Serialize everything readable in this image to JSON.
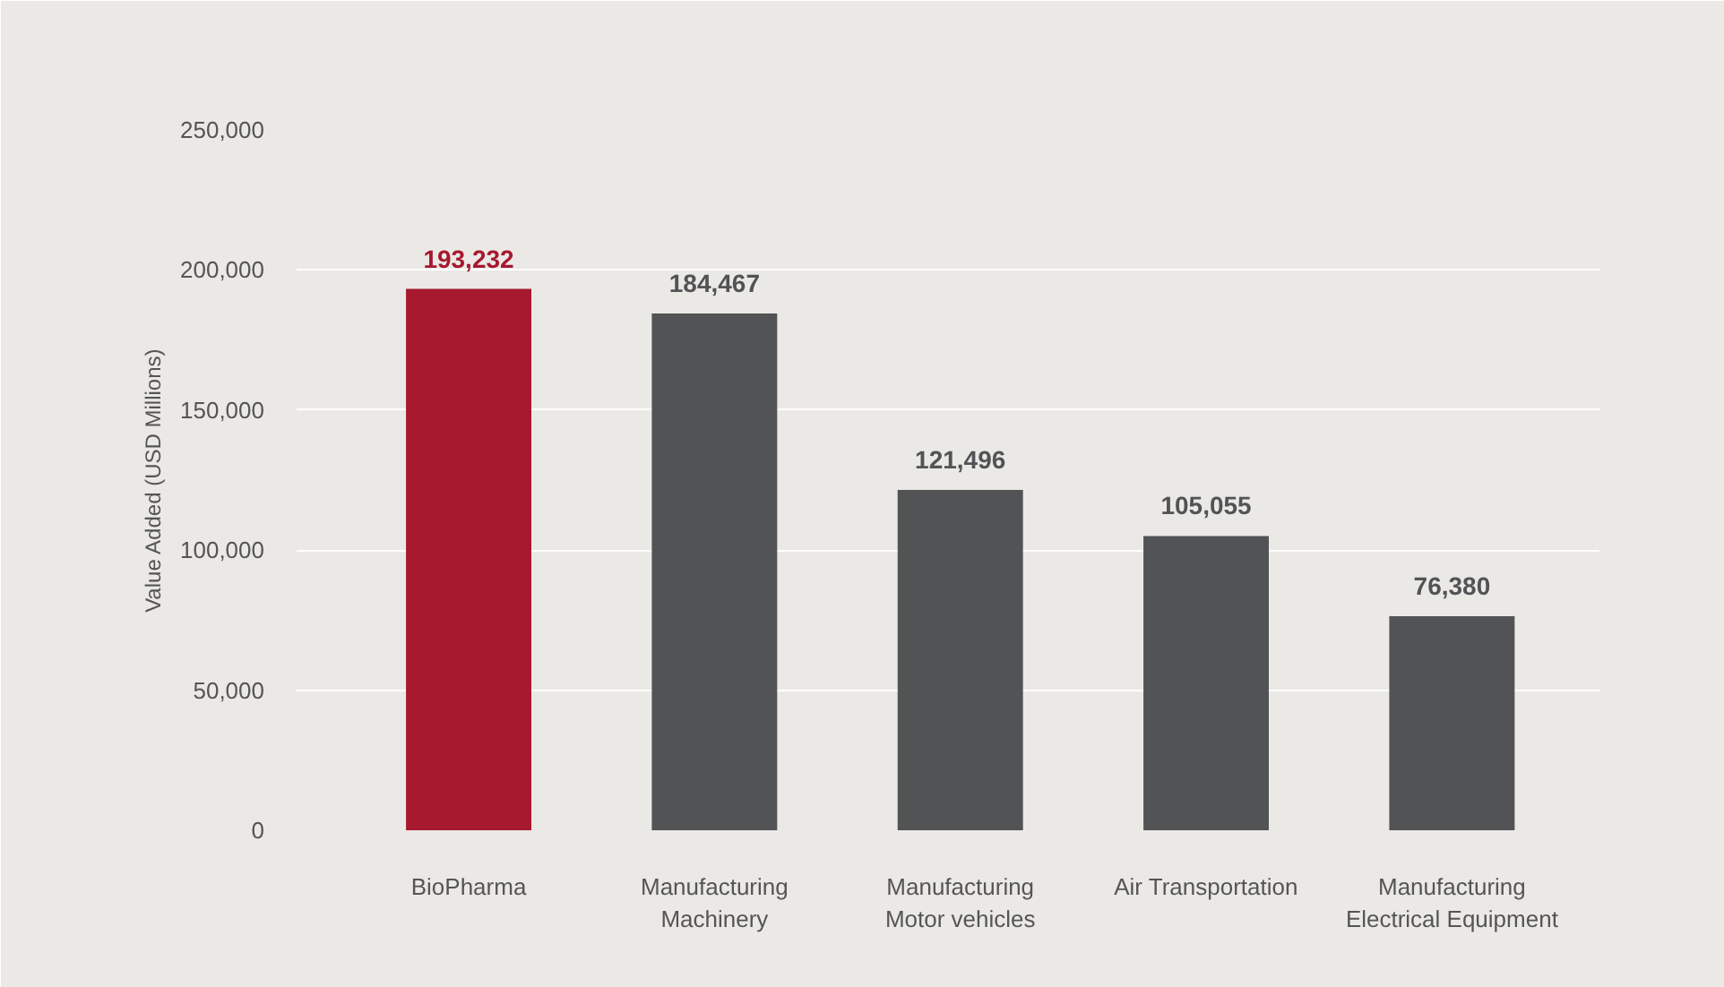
{
  "chart_data": {
    "type": "bar",
    "ylabel": "Value Added (USD Millions)",
    "categories": [
      "BioPharma",
      "Manufacturing\nMachinery",
      "Manufacturing\nMotor vehicles",
      "Air Transportation",
      "Manufacturing\nElectrical Equipment"
    ],
    "values": [
      193232,
      184467,
      121496,
      105055,
      76380
    ],
    "value_labels": [
      "193,232",
      "184,467",
      "121,496",
      "105,055",
      "76,380"
    ],
    "colors": [
      "#a6192e",
      "#525355",
      "#525355",
      "#525355",
      "#525355"
    ],
    "ylim": [
      0,
      250000
    ],
    "yticks": [
      0,
      {
        "value": 50000,
        "label": "50,000"
      },
      {
        "value": 100000,
        "label": "100,000"
      },
      {
        "value": 150000,
        "label": "150,000"
      },
      {
        "value": 200000,
        "label": "200,000"
      },
      {
        "value": 250000,
        "label": "250,000"
      }
    ],
    "grid": "y"
  }
}
